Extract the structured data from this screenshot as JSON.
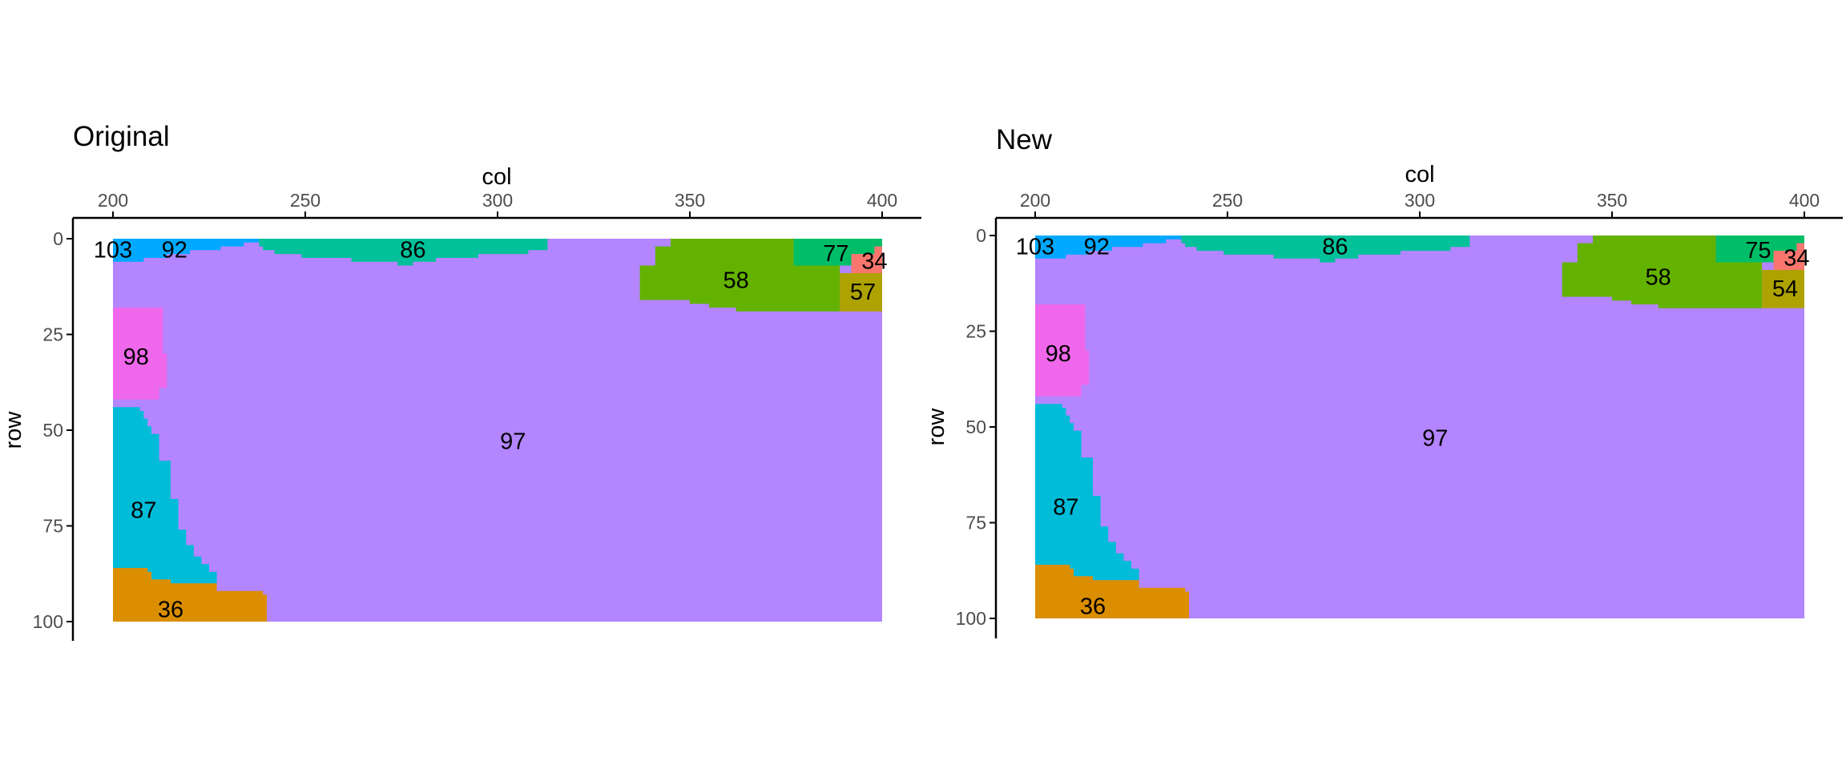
{
  "colors": {
    "r97": "#B385FF",
    "r103": "#FF66A8",
    "r92": "#00A9FF",
    "r86": "#00C19A",
    "r77": "#00BE67",
    "r58": "#64B200",
    "r57": "#AEA200",
    "r34": "#F8766D",
    "r98": "#EF67EB",
    "r87": "#00BCD8",
    "r36": "#DB8E00",
    "axis": "#000000",
    "tick_text": "#4d4d4d",
    "background": "#ffffff"
  },
  "chart_data": [
    {
      "type": "heatmap",
      "title": "Original",
      "xlabel": "col",
      "ylabel": "row",
      "xlim": [
        190,
        410
      ],
      "ylim": [
        0,
        105
      ],
      "x_ticks": [
        "200",
        "250",
        "300",
        "350",
        "400"
      ],
      "y_ticks": [
        "0",
        "25",
        "50",
        "75",
        "100"
      ],
      "grid": false,
      "legend": "none",
      "regions": [
        {
          "label": "97",
          "color_key": "r97",
          "label_pos": [
            304,
            53
          ]
        },
        {
          "label": "103",
          "color_key": "r103",
          "label_pos": [
            200,
            3
          ]
        },
        {
          "label": "92",
          "color_key": "r92",
          "label_pos": [
            216,
            3
          ]
        },
        {
          "label": "86",
          "color_key": "r86",
          "label_pos": [
            278,
            3
          ]
        },
        {
          "label": "77",
          "color_key": "r77",
          "label_pos": [
            388,
            4
          ]
        },
        {
          "label": "34",
          "color_key": "r34",
          "label_pos": [
            398,
            6
          ]
        },
        {
          "label": "58",
          "color_key": "r58",
          "label_pos": [
            362,
            11
          ]
        },
        {
          "label": "57",
          "color_key": "r57",
          "label_pos": [
            395,
            14
          ]
        },
        {
          "label": "98",
          "color_key": "r98",
          "label_pos": [
            206,
            31
          ]
        },
        {
          "label": "87",
          "color_key": "r87",
          "label_pos": [
            208,
            71
          ]
        },
        {
          "label": "36",
          "color_key": "r36",
          "label_pos": [
            215,
            97
          ]
        }
      ]
    },
    {
      "type": "heatmap",
      "title": "New",
      "xlabel": "col",
      "ylabel": "row",
      "xlim": [
        190,
        410
      ],
      "ylim": [
        0,
        105
      ],
      "x_ticks": [
        "200",
        "250",
        "300",
        "350",
        "400"
      ],
      "y_ticks": [
        "0",
        "25",
        "50",
        "75",
        "100"
      ],
      "grid": false,
      "legend": "none",
      "regions": [
        {
          "label": "97",
          "color_key": "r97",
          "label_pos": [
            304,
            53
          ]
        },
        {
          "label": "103",
          "color_key": "r103",
          "label_pos": [
            200,
            3
          ]
        },
        {
          "label": "92",
          "color_key": "r92",
          "label_pos": [
            216,
            3
          ]
        },
        {
          "label": "86",
          "color_key": "r86",
          "label_pos": [
            278,
            3
          ]
        },
        {
          "label": "75",
          "color_key": "r77",
          "label_pos": [
            388,
            4
          ]
        },
        {
          "label": "34",
          "color_key": "r34",
          "label_pos": [
            398,
            6
          ]
        },
        {
          "label": "58",
          "color_key": "r58",
          "label_pos": [
            362,
            11
          ]
        },
        {
          "label": "54",
          "color_key": "r57",
          "label_pos": [
            395,
            14
          ]
        },
        {
          "label": "98",
          "color_key": "r98",
          "label_pos": [
            206,
            31
          ]
        },
        {
          "label": "87",
          "color_key": "r87",
          "label_pos": [
            208,
            71
          ]
        },
        {
          "label": "36",
          "color_key": "r36",
          "label_pos": [
            215,
            97
          ]
        }
      ]
    }
  ]
}
